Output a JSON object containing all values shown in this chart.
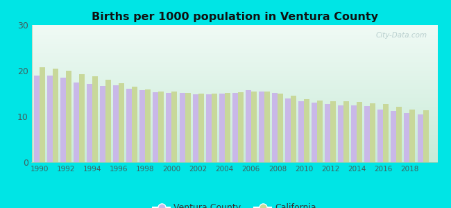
{
  "title": "Births per 1000 population in Ventura County",
  "years": [
    1990,
    1991,
    1992,
    1993,
    1994,
    1995,
    1996,
    1997,
    1998,
    1999,
    2000,
    2001,
    2002,
    2003,
    2004,
    2005,
    2006,
    2007,
    2008,
    2009,
    2010,
    2011,
    2012,
    2013,
    2014,
    2015,
    2016,
    2017,
    2018,
    2019
  ],
  "ventura": [
    19.0,
    19.0,
    18.5,
    17.5,
    17.1,
    16.7,
    16.8,
    16.1,
    15.7,
    15.3,
    15.2,
    15.1,
    14.8,
    14.8,
    15.0,
    15.2,
    15.7,
    15.5,
    15.2,
    14.0,
    13.3,
    13.0,
    12.8,
    12.5,
    12.4,
    12.3,
    11.5,
    11.2,
    10.7,
    10.5
  ],
  "california": [
    20.7,
    20.5,
    20.0,
    19.3,
    18.8,
    18.0,
    17.2,
    16.5,
    15.9,
    15.5,
    15.5,
    15.2,
    15.0,
    15.0,
    15.2,
    15.3,
    15.5,
    15.5,
    15.0,
    14.5,
    13.8,
    13.5,
    13.4,
    13.3,
    13.2,
    12.9,
    12.7,
    12.1,
    11.5,
    11.3
  ],
  "ventura_color": "#c9b8e8",
  "california_color": "#c8d89a",
  "background_outer": "#00e5e5",
  "ylim": [
    0,
    30
  ],
  "yticks": [
    0,
    10,
    20,
    30
  ],
  "legend_ventura": "Ventura County",
  "legend_california": "California",
  "bar_width": 0.42,
  "tick_color": "#406060",
  "watermark": "City-Data.com"
}
